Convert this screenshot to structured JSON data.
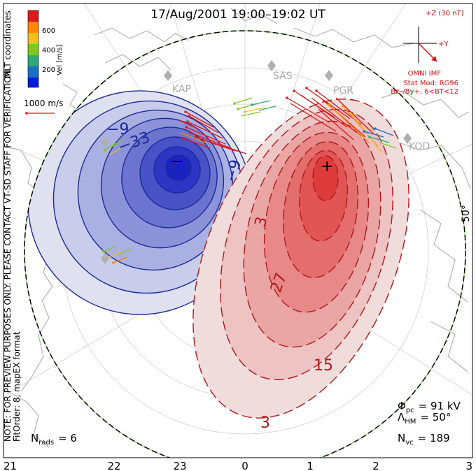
{
  "title": "17/Aug/2001  19:00–19:02  UT",
  "side_notes": {
    "coordinates": "MLT coordinates",
    "preview": "NOTE: FOR PREVIEW PURPOSES ONLY. PLEASE CONTACT VT-SD STAFF FOR VERIFICATION.",
    "fitorder": "FitOrder: 8, mapEX format"
  },
  "velocity_colorbar": {
    "label": "Vel [m/s]",
    "ticks": [
      "600",
      "400",
      "200"
    ],
    "colors": [
      "#e01818",
      "#ff8800",
      "#f0c020",
      "#80c820",
      "#30a878",
      "#1870c8",
      "#0818d8"
    ]
  },
  "velocity_scale": {
    "label": "1000 m/s"
  },
  "imf_panel": {
    "bz_label": "+Z (30 nT)",
    "by_label": "+Y",
    "source": "OMNI IMF",
    "stat_model": "Stat Mod: RG96",
    "condition": "Bz–/By+, 6<BT<12"
  },
  "radars": [
    "KAP",
    "SAS",
    "PGR",
    "KOD"
  ],
  "latitude_label": "50°",
  "contours": {
    "negative_labels": [
      "−9",
      "−33",
      "−9"
    ],
    "positive_labels": [
      "3",
      "27",
      "15",
      "3"
    ],
    "min_marker": "−",
    "max_marker": "+"
  },
  "stats": {
    "phi_pc": {
      "symbol": "Φ",
      "sub": "pc",
      "value": "= 91 kV"
    },
    "lambda_hm": {
      "symbol": "Λ",
      "sub": "HM",
      "value": "= 50°"
    },
    "n_vc": {
      "symbol": "N",
      "sub": "vc",
      "value": "= 189"
    },
    "n_rads": {
      "symbol": "N",
      "sub": "rads",
      "value": "= 6"
    }
  },
  "mlt_axis": [
    "21",
    "22",
    "23",
    "0",
    "1",
    "2",
    "3"
  ],
  "colors": {
    "negative_potential": "#1a2a9a",
    "positive_potential": "#b01818",
    "boundary_ring": "#8ee070",
    "coastline": "#b4b4b4"
  }
}
